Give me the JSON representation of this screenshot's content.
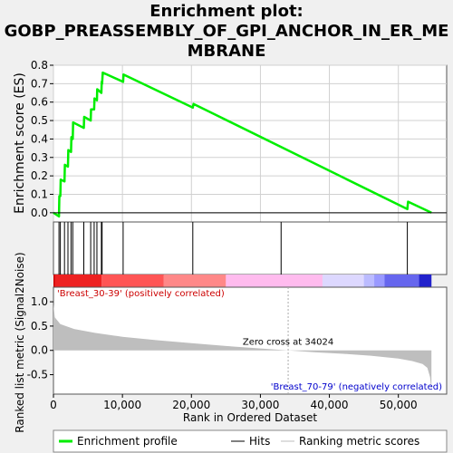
{
  "chart_data": {
    "type": "line",
    "title": "Enrichment plot: GOBP_PREASSEMBLY_OF_GPI_ANCHOR_IN_ER_MEMBRANE",
    "title_lines": [
      "Enrichment plot:",
      "GOBP_PREASSEMBLY_OF_GPI_ANCHOR_IN_ER_ME",
      "MBRANE"
    ],
    "es_panel": {
      "ylabel": "Enrichment score (ES)",
      "ylim": [
        -0.05,
        0.8
      ],
      "yticks": [
        0.0,
        0.1,
        0.2,
        0.3,
        0.4,
        0.5,
        0.6,
        0.7,
        0.8
      ],
      "ytick_labels": [
        "0.0",
        "0.1",
        "0.2",
        "0.3",
        "0.4",
        "0.5",
        "0.6",
        "0.7",
        "0.8"
      ],
      "grid": true
    },
    "x_range": [
      0,
      57000
    ],
    "xticks": [
      0,
      10000,
      20000,
      30000,
      40000,
      50000
    ],
    "xtick_labels": [
      "0",
      "10,000",
      "20,000",
      "30,000",
      "40,000",
      "50,000"
    ],
    "xlabel": "Rank in Ordered Dataset",
    "enrichment_profile": {
      "name": "Enrichment profile",
      "color": "#00ee00",
      "x": [
        0,
        800,
        850,
        1000,
        1050,
        1600,
        1650,
        2100,
        2150,
        2550,
        2600,
        2800,
        2850,
        4400,
        4450,
        5400,
        5450,
        5900,
        5950,
        6300,
        6350,
        6950,
        7000,
        7050,
        7150,
        10100,
        10150,
        20200,
        20300,
        51300,
        51400,
        54800
      ],
      "y": [
        0.0,
        -0.02,
        0.09,
        0.09,
        0.18,
        0.17,
        0.26,
        0.25,
        0.34,
        0.33,
        0.41,
        0.4,
        0.49,
        0.46,
        0.52,
        0.5,
        0.56,
        0.56,
        0.62,
        0.61,
        0.67,
        0.65,
        0.71,
        0.7,
        0.76,
        0.71,
        0.75,
        0.57,
        0.59,
        0.02,
        0.06,
        0.0
      ]
    },
    "hits": {
      "name": "Hits",
      "x": [
        800,
        1000,
        1600,
        2100,
        2550,
        2800,
        4400,
        5400,
        5900,
        6300,
        6950,
        7050,
        10100,
        20200,
        33000,
        51300
      ]
    },
    "color_bar": {
      "segments": [
        {
          "x0": 0,
          "x1": 200,
          "color": "#cc0000"
        },
        {
          "x0": 200,
          "x1": 7000,
          "color": "#ee2222"
        },
        {
          "x0": 7000,
          "x1": 16000,
          "color": "#ff5555"
        },
        {
          "x0": 16000,
          "x1": 25000,
          "color": "#ff8888"
        },
        {
          "x0": 25000,
          "x1": 39000,
          "color": "#ffbbee"
        },
        {
          "x0": 39000,
          "x1": 45000,
          "color": "#ddd8ff"
        },
        {
          "x0": 45000,
          "x1": 46500,
          "color": "#bbbbff"
        },
        {
          "x0": 46500,
          "x1": 48000,
          "color": "#9999ff"
        },
        {
          "x0": 48000,
          "x1": 53000,
          "color": "#6666ee"
        },
        {
          "x0": 53000,
          "x1": 54800,
          "color": "#2222cc"
        }
      ]
    },
    "metric_panel": {
      "ylabel": "Ranked list metric (Signal2Noise)",
      "ylim": [
        -0.9,
        1.3
      ],
      "yticks": [
        -0.5,
        0.0,
        0.5,
        1.0
      ],
      "ytick_labels": [
        "-0.5",
        "0.0",
        "0.5",
        "1.0"
      ],
      "x": [
        0,
        200,
        1000,
        3000,
        6000,
        10000,
        15000,
        20000,
        25000,
        30000,
        34024,
        38000,
        42000,
        46000,
        50000,
        52000,
        53500,
        54200,
        54600,
        54800
      ],
      "y": [
        0.95,
        0.68,
        0.54,
        0.44,
        0.36,
        0.28,
        0.21,
        0.15,
        0.09,
        0.04,
        0.0,
        -0.04,
        -0.07,
        -0.11,
        -0.17,
        -0.22,
        -0.28,
        -0.36,
        -0.55,
        -0.85
      ],
      "fill_color": "#bebebe",
      "pos_label": "'Breast_30-39' (positively correlated)",
      "neg_label": "'Breast_70-79' (negatively correlated)",
      "pos_color": "#cc0000",
      "neg_color": "#0000cc",
      "zero_cross_label": "Zero cross at 34024",
      "zero_cross_x": 34024
    },
    "legend": {
      "placement": "bottom",
      "entries": [
        {
          "label": "Enrichment profile",
          "color": "#00ee00",
          "style": "thick-line"
        },
        {
          "label": "Hits",
          "color": "#000000",
          "style": "thin-line"
        },
        {
          "label": "Ranking metric scores",
          "color": "#bebebe",
          "style": "thin-line"
        }
      ]
    }
  }
}
